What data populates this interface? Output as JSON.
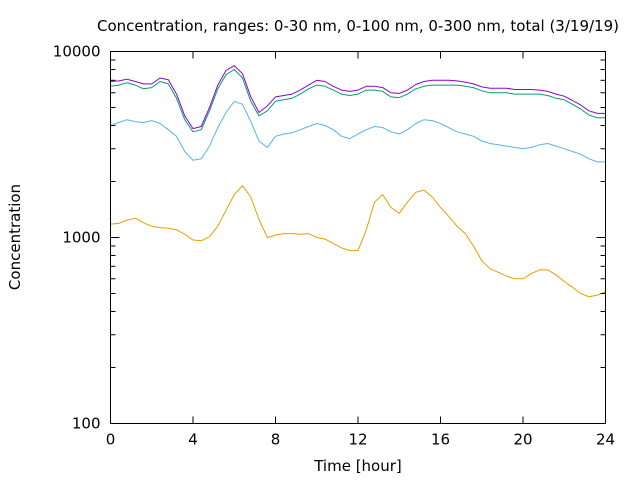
{
  "chart_data": {
    "type": "line",
    "title": "Concentration, ranges: 0-30 nm, 0-100 nm, 0-300 nm, total (3/19/19)",
    "xlabel": "Time [hour]",
    "ylabel": "Concentration",
    "xlim": [
      0,
      24
    ],
    "ylim": [
      100,
      10000
    ],
    "yscale": "log",
    "grid": false,
    "x_ticks": [
      0,
      4,
      8,
      12,
      16,
      20,
      24
    ],
    "y_ticks": [
      100,
      1000,
      10000
    ],
    "y_minor_ticks": [
      200,
      300,
      400,
      500,
      600,
      700,
      800,
      900,
      2000,
      3000,
      4000,
      5000,
      6000,
      7000,
      8000,
      9000
    ],
    "series": [
      {
        "color": "#e69f00",
        "x": [
          0,
          0.4,
          0.8,
          1.2,
          1.6,
          2,
          2.4,
          2.8,
          3.2,
          3.6,
          4,
          4.4,
          4.8,
          5.2,
          5.6,
          6,
          6.4,
          6.8,
          7.2,
          7.6,
          8,
          8.4,
          8.8,
          9.2,
          9.6,
          10,
          10.4,
          10.8,
          11.2,
          11.6,
          12,
          12.4,
          12.8,
          13.2,
          13.6,
          14,
          14.4,
          14.8,
          15.2,
          15.6,
          16,
          16.4,
          16.8,
          17.2,
          17.6,
          18,
          18.4,
          18.8,
          19.2,
          19.6,
          20,
          20.4,
          20.8,
          21.2,
          21.6,
          22,
          22.4,
          22.8,
          23.2,
          23.6,
          24
        ],
        "y": [
          1180,
          1190,
          1240,
          1270,
          1200,
          1150,
          1130,
          1120,
          1100,
          1040,
          970,
          960,
          1010,
          1150,
          1400,
          1700,
          1900,
          1650,
          1250,
          1000,
          1030,
          1050,
          1050,
          1040,
          1050,
          1000,
          980,
          930,
          880,
          850,
          850,
          1100,
          1550,
          1700,
          1450,
          1350,
          1550,
          1750,
          1800,
          1650,
          1450,
          1300,
          1150,
          1050,
          900,
          750,
          680,
          650,
          620,
          600,
          600,
          640,
          670,
          670,
          630,
          580,
          540,
          500,
          480,
          490,
          510
        ]
      },
      {
        "color": "#56b4e9",
        "x": [
          0,
          0.4,
          0.8,
          1.2,
          1.6,
          2,
          2.4,
          2.8,
          3.2,
          3.6,
          4,
          4.4,
          4.8,
          5.2,
          5.6,
          6,
          6.4,
          6.8,
          7.2,
          7.6,
          8,
          8.4,
          8.8,
          9.2,
          9.6,
          10,
          10.4,
          10.8,
          11.2,
          11.6,
          12,
          12.4,
          12.8,
          13.2,
          13.6,
          14,
          14.4,
          14.8,
          15.2,
          15.6,
          16,
          16.4,
          16.8,
          17.2,
          17.6,
          18,
          18.4,
          18.8,
          19.2,
          19.6,
          20,
          20.4,
          20.8,
          21.2,
          21.6,
          22,
          22.4,
          22.8,
          23.2,
          23.6,
          24
        ],
        "y": [
          4000,
          4150,
          4300,
          4200,
          4150,
          4250,
          4100,
          3800,
          3500,
          2900,
          2600,
          2650,
          3100,
          3900,
          4700,
          5400,
          5200,
          4200,
          3300,
          3050,
          3500,
          3600,
          3650,
          3800,
          3950,
          4100,
          4000,
          3800,
          3500,
          3400,
          3600,
          3800,
          3950,
          3900,
          3700,
          3600,
          3800,
          4100,
          4300,
          4250,
          4100,
          3900,
          3700,
          3600,
          3500,
          3300,
          3200,
          3150,
          3100,
          3050,
          3000,
          3050,
          3150,
          3200,
          3100,
          3000,
          2900,
          2800,
          2650,
          2550,
          2550
        ]
      },
      {
        "color": "#009e73",
        "x": [
          0,
          0.4,
          0.8,
          1.2,
          1.6,
          2,
          2.4,
          2.8,
          3.2,
          3.6,
          4,
          4.4,
          4.8,
          5.2,
          5.6,
          6,
          6.4,
          6.8,
          7.2,
          7.6,
          8,
          8.4,
          8.8,
          9.2,
          9.6,
          10,
          10.4,
          10.8,
          11.2,
          11.6,
          12,
          12.4,
          12.8,
          13.2,
          13.6,
          14,
          14.4,
          14.8,
          15.2,
          15.6,
          16,
          16.4,
          16.8,
          17.2,
          17.6,
          18,
          18.4,
          18.8,
          19.2,
          19.6,
          20,
          20.4,
          20.8,
          21.2,
          21.6,
          22,
          22.4,
          22.8,
          23.2,
          23.6,
          24
        ],
        "y": [
          6500,
          6600,
          6800,
          6600,
          6300,
          6400,
          6900,
          6700,
          5600,
          4300,
          3700,
          3800,
          4800,
          6300,
          7500,
          8000,
          7200,
          5400,
          4500,
          4800,
          5400,
          5500,
          5600,
          5900,
          6300,
          6600,
          6500,
          6200,
          5900,
          5800,
          5900,
          6200,
          6200,
          6100,
          5700,
          5650,
          5900,
          6300,
          6500,
          6600,
          6600,
          6600,
          6600,
          6500,
          6400,
          6150,
          6000,
          6000,
          6000,
          5900,
          5900,
          5900,
          5900,
          5800,
          5600,
          5500,
          5200,
          4900,
          4550,
          4400,
          4400
        ]
      },
      {
        "color": "#9400d3",
        "x": [
          0,
          0.4,
          0.8,
          1.2,
          1.6,
          2,
          2.4,
          2.8,
          3.2,
          3.6,
          4,
          4.4,
          4.8,
          5.2,
          5.6,
          6,
          6.4,
          6.8,
          7.2,
          7.6,
          8,
          8.4,
          8.8,
          9.2,
          9.6,
          10,
          10.4,
          10.8,
          11.2,
          11.6,
          12,
          12.4,
          12.8,
          13.2,
          13.6,
          14,
          14.4,
          14.8,
          15.2,
          15.6,
          16,
          16.4,
          16.8,
          17.2,
          17.6,
          18,
          18.4,
          18.8,
          19.2,
          19.6,
          20,
          20.4,
          20.8,
          21.2,
          21.6,
          22,
          22.4,
          22.8,
          23.2,
          23.6,
          24
        ],
        "y": [
          6900,
          6950,
          7100,
          6900,
          6700,
          6700,
          7200,
          7050,
          5900,
          4500,
          3850,
          3950,
          5000,
          6600,
          7900,
          8400,
          7600,
          5700,
          4700,
          5100,
          5700,
          5800,
          5900,
          6200,
          6600,
          7000,
          6900,
          6500,
          6200,
          6100,
          6200,
          6500,
          6500,
          6400,
          6000,
          5950,
          6200,
          6650,
          6900,
          7000,
          7000,
          7000,
          6950,
          6850,
          6700,
          6450,
          6350,
          6350,
          6350,
          6250,
          6250,
          6250,
          6200,
          6100,
          5900,
          5750,
          5450,
          5150,
          4800,
          4650,
          4650
        ]
      }
    ]
  }
}
